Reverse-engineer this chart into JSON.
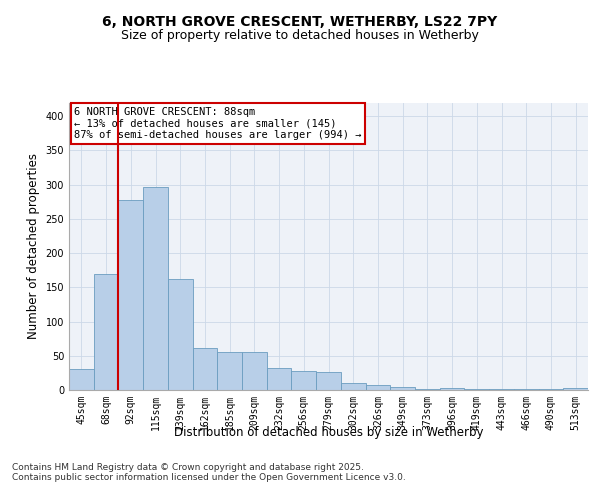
{
  "title_line1": "6, NORTH GROVE CRESCENT, WETHERBY, LS22 7PY",
  "title_line2": "Size of property relative to detached houses in Wetherby",
  "xlabel": "Distribution of detached houses by size in Wetherby",
  "ylabel": "Number of detached properties",
  "categories": [
    "45sqm",
    "68sqm",
    "92sqm",
    "115sqm",
    "139sqm",
    "162sqm",
    "185sqm",
    "209sqm",
    "232sqm",
    "256sqm",
    "279sqm",
    "302sqm",
    "326sqm",
    "349sqm",
    "373sqm",
    "396sqm",
    "419sqm",
    "443sqm",
    "466sqm",
    "490sqm",
    "513sqm"
  ],
  "values": [
    30,
    170,
    278,
    297,
    162,
    62,
    55,
    55,
    32,
    28,
    27,
    10,
    7,
    5,
    1,
    3,
    1,
    1,
    2,
    1,
    3
  ],
  "bar_color": "#b8cfe8",
  "bar_edge_color": "#6a9cc0",
  "background_color": "#eef2f8",
  "grid_color": "#ccd8e8",
  "vline_color": "#cc0000",
  "annotation_box_text": "6 NORTH GROVE CRESCENT: 88sqm\n← 13% of detached houses are smaller (145)\n87% of semi-detached houses are larger (994) →",
  "annotation_box_color": "#cc0000",
  "ylim": [
    0,
    420
  ],
  "yticks": [
    0,
    50,
    100,
    150,
    200,
    250,
    300,
    350,
    400
  ],
  "footer_text": "Contains HM Land Registry data © Crown copyright and database right 2025.\nContains public sector information licensed under the Open Government Licence v3.0.",
  "title_fontsize": 10,
  "subtitle_fontsize": 9,
  "axis_label_fontsize": 8.5,
  "tick_fontsize": 7,
  "annotation_fontsize": 7.5,
  "footer_fontsize": 6.5
}
